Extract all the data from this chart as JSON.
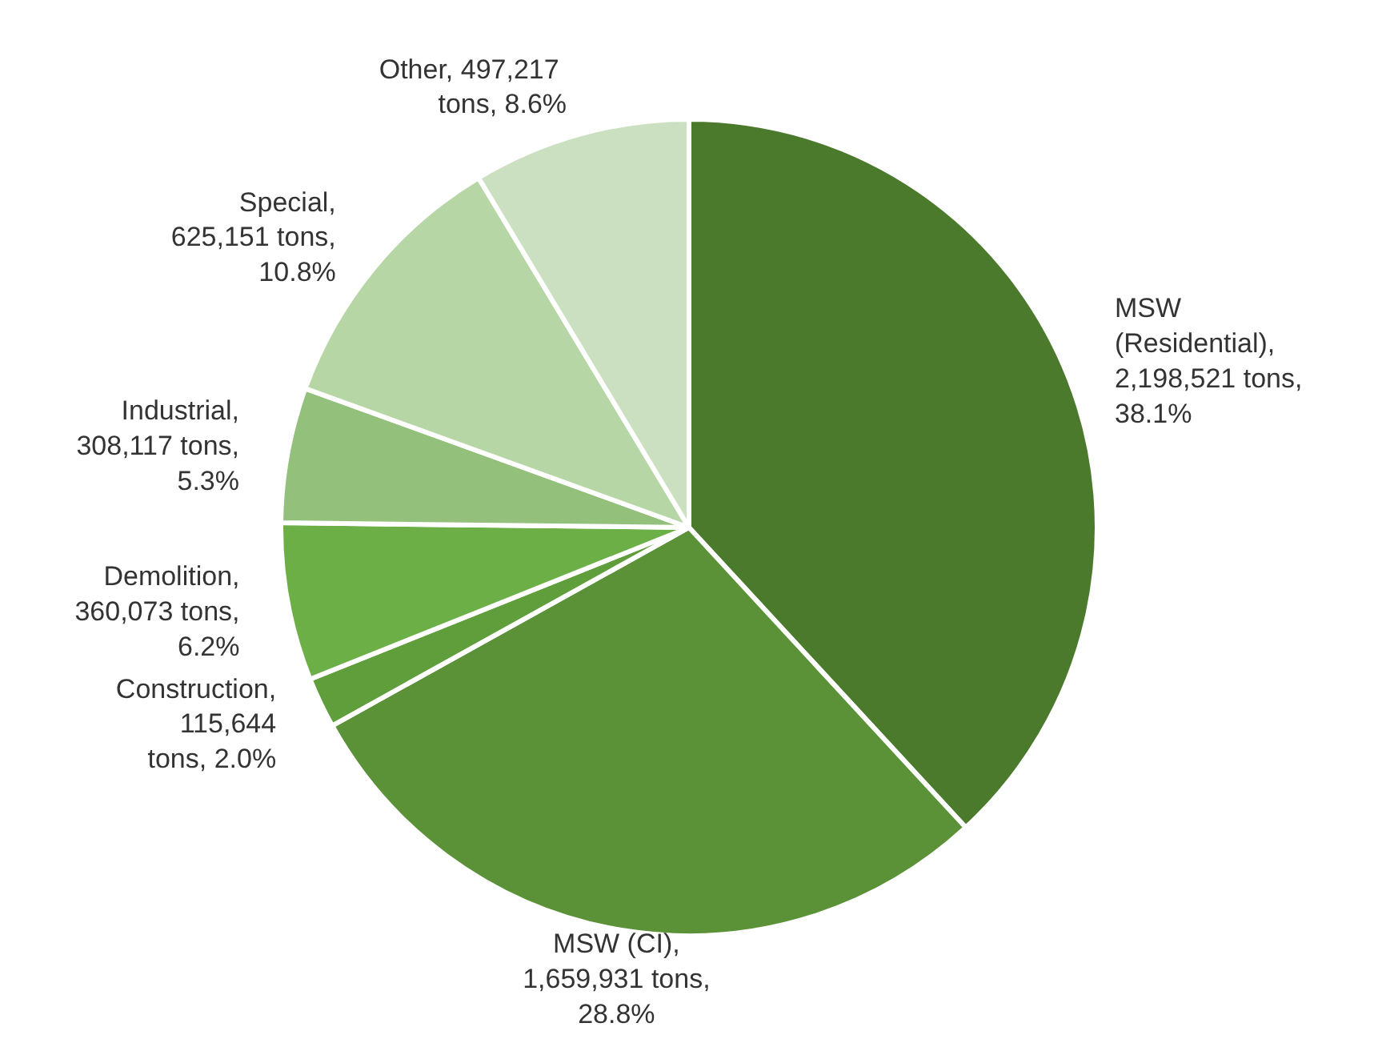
{
  "chart_data": {
    "type": "pie",
    "categories": [
      "MSW (Residential)",
      "MSW (CI)",
      "Construction",
      "Demolition",
      "Industrial",
      "Special",
      "Other"
    ],
    "values": [
      2198521,
      1659931,
      115644,
      360073,
      308117,
      625151,
      497217
    ],
    "value_labels": [
      ",\n2,198,521 tons,\n38.1%",
      ",\n1,659,931 tons,\n28.8%",
      ",\n115,644\ntons, 2.0%",
      ",\n360,073 tons,\n6.2%",
      ",\n308,117 tons,\n5.3%",
      ",\n625,151 tons,\n10.8%",
      ",  497,217\ntons, 8.6%"
    ],
    "colors": [
      "#4b7a2d",
      "#5b9237",
      "#5f9e3a",
      "#6caf47",
      "#93c07b",
      "#b7d6a6",
      "#cbe0c0"
    ]
  }
}
